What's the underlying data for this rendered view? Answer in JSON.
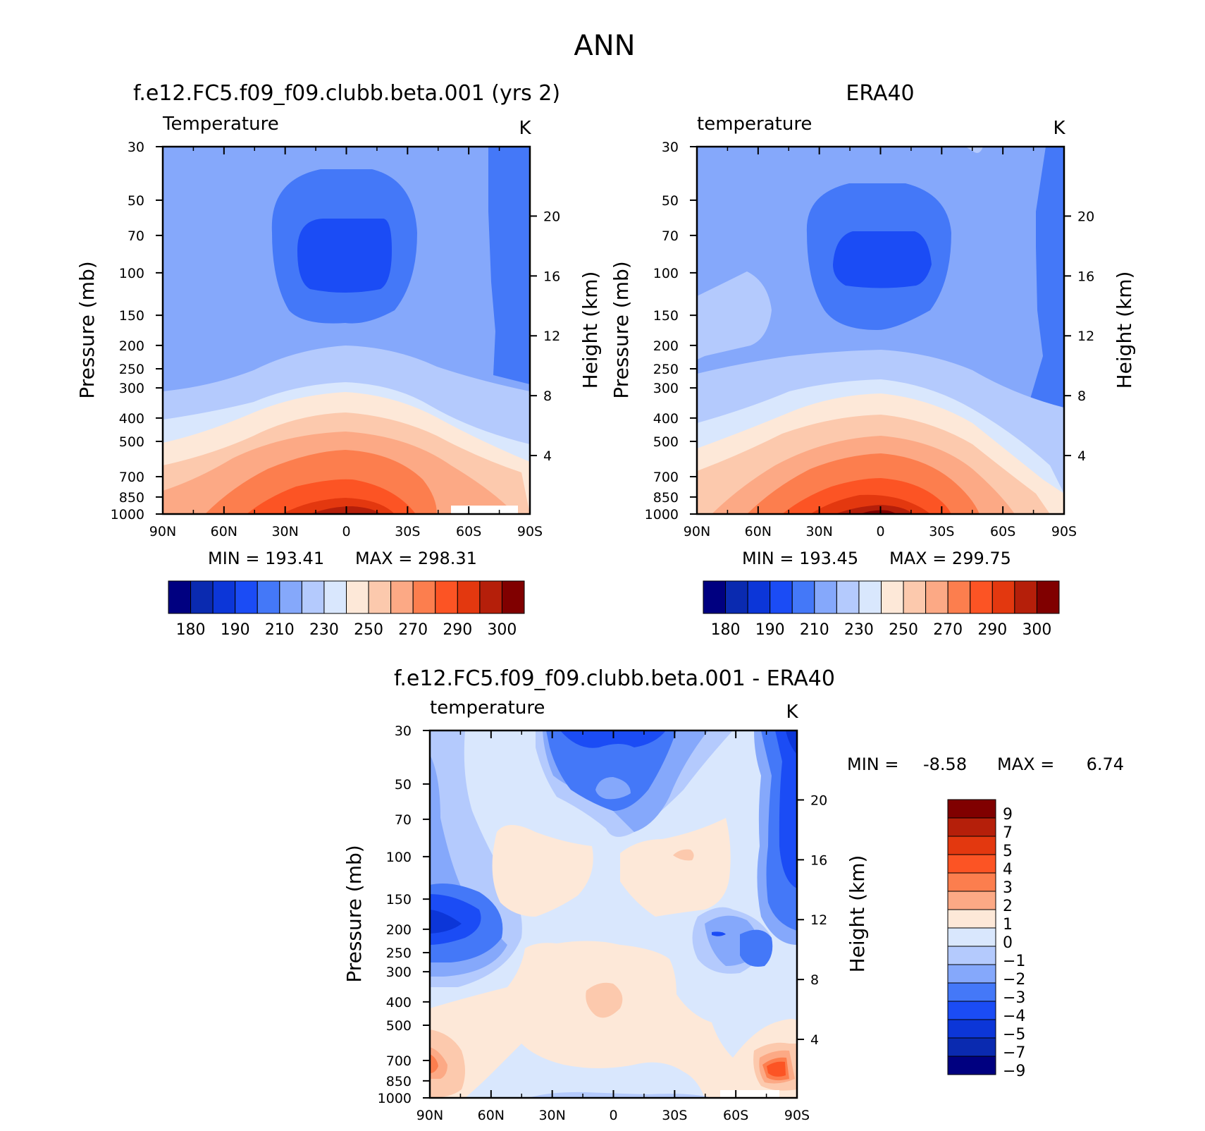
{
  "figure": {
    "title": "ANN"
  },
  "chart_data": [
    {
      "type": "heatmap",
      "title": "f.e12.FC5.f09_f09.clubb.beta.001 (yrs 2)",
      "variable_label": "Temperature",
      "units": "K",
      "ylabel": "Pressure (mb)",
      "y2label": "Height (km)",
      "x_ticks": [
        "90N",
        "60N",
        "30N",
        "0",
        "30S",
        "60S",
        "90S"
      ],
      "y_ticks": [
        "30",
        "50",
        "70",
        "100",
        "150",
        "200",
        "250",
        "300",
        "400",
        "500",
        "700",
        "850",
        "1000"
      ],
      "y2_ticks": [
        "20",
        "16",
        "12",
        "8",
        "4"
      ],
      "min_text": "MIN = 193.41",
      "max_text": "MAX = 298.31",
      "min": 193.41,
      "max": 298.31,
      "colorbar_ticks": [
        "180",
        "190",
        "210",
        "230",
        "250",
        "270",
        "290",
        "300"
      ]
    },
    {
      "type": "heatmap",
      "title": "ERA40",
      "variable_label": "temperature",
      "units": "K",
      "ylabel": "Pressure (mb)",
      "y2label": "Height (km)",
      "x_ticks": [
        "90N",
        "60N",
        "30N",
        "0",
        "30S",
        "60S",
        "90S"
      ],
      "y_ticks": [
        "30",
        "50",
        "70",
        "100",
        "150",
        "200",
        "250",
        "300",
        "400",
        "500",
        "700",
        "850",
        "1000"
      ],
      "y2_ticks": [
        "20",
        "16",
        "12",
        "8",
        "4"
      ],
      "min_text": "MIN = 193.45",
      "max_text": "MAX = 299.75",
      "min": 193.45,
      "max": 299.75,
      "colorbar_ticks": [
        "180",
        "190",
        "210",
        "230",
        "250",
        "270",
        "290",
        "300"
      ]
    },
    {
      "type": "heatmap",
      "title": "f.e12.FC5.f09_f09.clubb.beta.001 - ERA40",
      "variable_label": "temperature",
      "units": "K",
      "ylabel": "Pressure (mb)",
      "y2label": "Height (km)",
      "x_ticks": [
        "90N",
        "60N",
        "30N",
        "0",
        "30S",
        "60S",
        "90S"
      ],
      "y_ticks": [
        "30",
        "50",
        "70",
        "100",
        "150",
        "200",
        "250",
        "300",
        "400",
        "500",
        "700",
        "850",
        "1000"
      ],
      "y2_ticks": [
        "20",
        "16",
        "12",
        "8",
        "4"
      ],
      "min_label": "MIN =",
      "min_value": "-8.58",
      "max_label": "MAX =",
      "max_value": "6.74",
      "min": -8.58,
      "max": 6.74,
      "colorbar_ticks": [
        "9",
        "7",
        "5",
        "4",
        "3",
        "2",
        "1",
        "0",
        "-1",
        "-2",
        "-3",
        "-4",
        "-5",
        "-7",
        "-9"
      ]
    }
  ],
  "colors": {
    "abs_scale": [
      "#000080",
      "#0a2ab0",
      "#0c36d8",
      "#1b4cf5",
      "#4478f8",
      "#85a8fb",
      "#b4cafd",
      "#d9e7fd",
      "#fde8d8",
      "#fcc9ad",
      "#fca985",
      "#fc7e4e",
      "#fc5424",
      "#e3380f",
      "#b51f0a",
      "#800000"
    ],
    "diff_scale_top_to_bottom": [
      "#800000",
      "#b51f0a",
      "#e3380f",
      "#fc5424",
      "#fc7e4e",
      "#fca985",
      "#fde8d8",
      "#d9e7fd",
      "#b4cafd",
      "#85a8fb",
      "#4478f8",
      "#1b4cf5",
      "#0c36d8",
      "#0a2ab0",
      "#000080"
    ]
  }
}
